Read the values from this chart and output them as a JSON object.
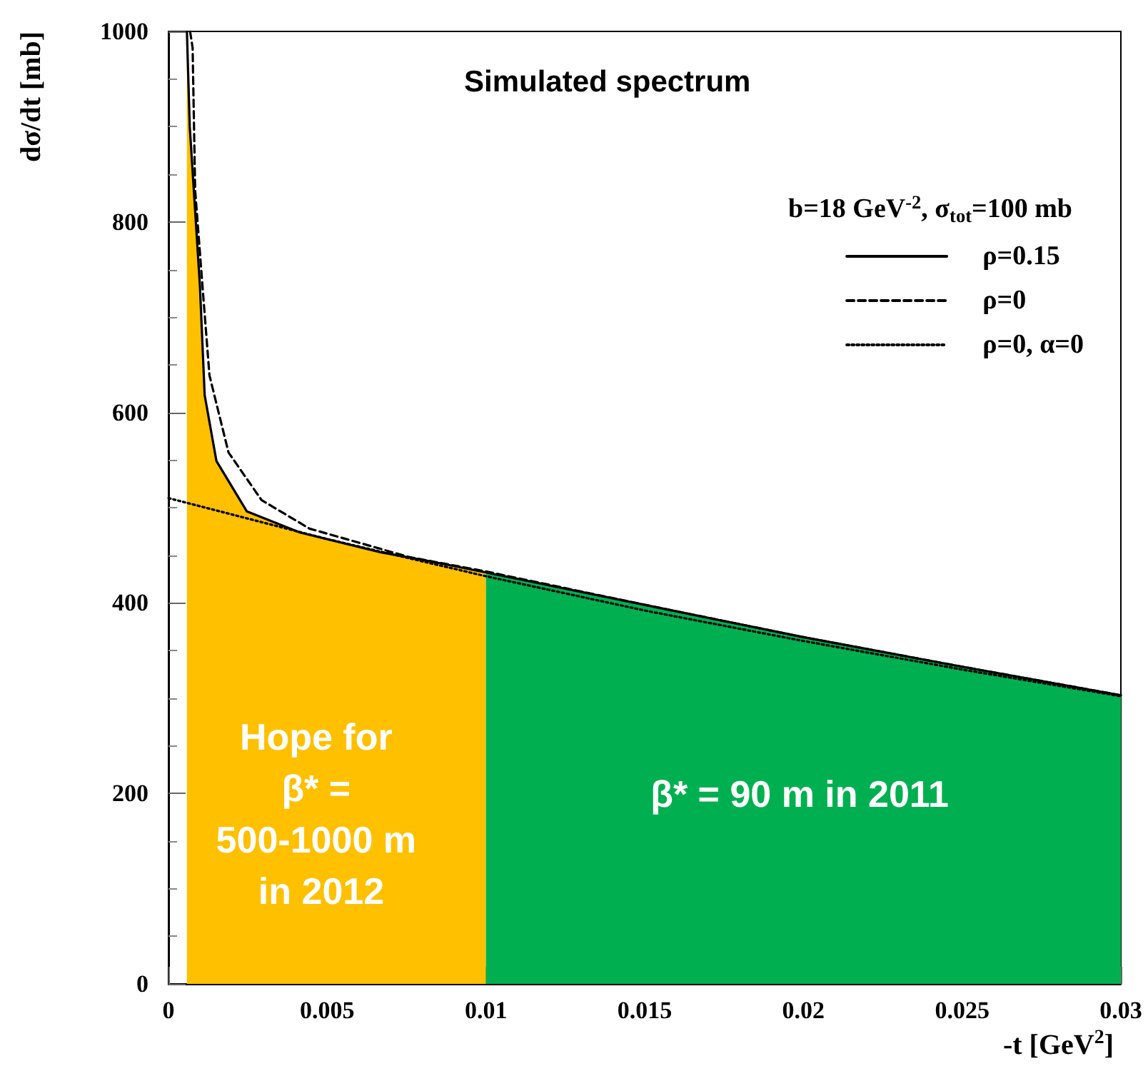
{
  "chart_data": {
    "type": "line",
    "title": "Simulated spectrum",
    "xlabel": "-t [GeV$^{2}$]",
    "ylabel": "dσ/dt [mb]",
    "legend_title": "b=18 GeV$^{-2}$, σ$_{tot}$=100 mb",
    "series": [
      {
        "type": "area",
        "color": "#ffc000",
        "x": [
          0.00058,
          0.00067,
          0.00099,
          0.00114,
          0.00151,
          0.00247,
          0.00414,
          0.0067,
          0.0082,
          0.01
        ],
        "values": [
          1000,
          900,
          733,
          618,
          549,
          496,
          474,
          453,
          444,
          432
        ]
      },
      {
        "type": "area",
        "color": "#00b050",
        "x": [
          0.01,
          0.015,
          0.02,
          0.025,
          0.03
        ],
        "values": [
          432,
          398,
          364,
          333,
          303
        ]
      },
      {
        "name": "ρ=0.15",
        "color": "#000000",
        "line_style": "solid",
        "x": [
          0.00058,
          0.00067,
          0.00099,
          0.00114,
          0.00151,
          0.00247,
          0.00414,
          0.0067,
          0.0082,
          0.01,
          0.015,
          0.02,
          0.025,
          0.03
        ],
        "values": [
          1000,
          900,
          733,
          618,
          549,
          496,
          474,
          453,
          444,
          432,
          398,
          364,
          333,
          303
        ]
      },
      {
        "name": "ρ=0",
        "color": "#000000",
        "line_style": "dashed",
        "x": [
          0.00068,
          0.00076,
          0.00084,
          0.00107,
          0.00129,
          0.00189,
          0.00293,
          0.00444,
          0.0076,
          0.01,
          0.015,
          0.02,
          0.025,
          0.03
        ],
        "values": [
          1000,
          983,
          833,
          733,
          639,
          558,
          508,
          478,
          448,
          433,
          398,
          364,
          333,
          303
        ]
      },
      {
        "name": "ρ=0, α=0",
        "color": "#000000",
        "line_style": "dotted",
        "x": [
          0,
          0.005,
          0.01,
          0.015,
          0.02,
          0.025,
          0.03
        ],
        "values": [
          510,
          467,
          428,
          392,
          360,
          330,
          302
        ]
      }
    ],
    "annotations": [
      "Hope for β* = 500-1000 m in 2012",
      "β* = 90 m in 2011"
    ],
    "xlim": [
      0,
      0.03
    ],
    "xticks": [
      0,
      0.005,
      0.01,
      0.015,
      0.02,
      0.025,
      0.03
    ],
    "ylim": [
      0,
      1000
    ],
    "yticks": [
      0,
      200,
      400,
      600,
      800,
      1000
    ],
    "grid": false,
    "legend": "top right",
    "marker": "none"
  }
}
